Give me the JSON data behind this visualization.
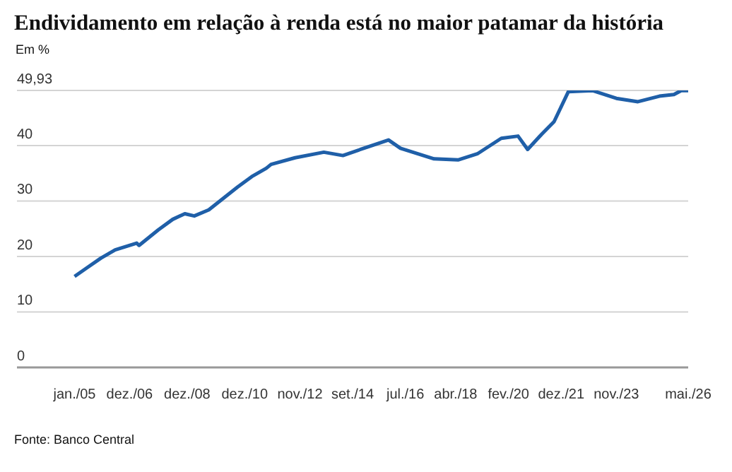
{
  "chart_data": {
    "type": "line",
    "title": "Endividamento em relação à renda está no maior patamar da história",
    "ylabel": "Em %",
    "annotations": [
      "Fonte: Banco Central"
    ],
    "x": [
      "2005-01",
      "2005-06",
      "2005-12",
      "2006-06",
      "2007-03",
      "2007-04",
      "2007-12",
      "2008-06",
      "2008-11",
      "2009-03",
      "2009-09",
      "2010-04",
      "2010-09",
      "2011-03",
      "2011-09",
      "2011-11",
      "2012-09",
      "2013-09",
      "2014-05",
      "2015-03",
      "2015-12",
      "2016-05",
      "2017-07",
      "2018-05",
      "2019-01",
      "2019-11",
      "2020-06",
      "2020-10",
      "2021-04",
      "2021-09",
      "2022-03",
      "2023-01",
      "2023-11",
      "2024-08",
      "2025-05",
      "2025-11",
      "2026-02",
      "2026-05"
    ],
    "series": [
      {
        "color": "#1f5fa8",
        "values": [
          16.4,
          17.9,
          19.7,
          21.2,
          22.4,
          22.0,
          24.8,
          26.7,
          27.7,
          27.3,
          28.4,
          30.8,
          32.5,
          34.4,
          35.9,
          36.6,
          37.8,
          38.8,
          38.2,
          39.7,
          41.0,
          39.5,
          37.6,
          37.4,
          38.5,
          41.3,
          41.7,
          39.3,
          42.1,
          44.3,
          49.7,
          49.9,
          48.5,
          47.9,
          48.9,
          49.2,
          49.9,
          49.9
        ]
      }
    ],
    "xlim": [
      "2003-01",
      "2026-05"
    ],
    "xticks": [
      {
        "value": "2005-01",
        "label": "jan./05"
      },
      {
        "value": "2006-12",
        "label": "dez./06"
      },
      {
        "value": "2008-12",
        "label": "dez./08"
      },
      {
        "value": "2010-12",
        "label": "dez./10"
      },
      {
        "value": "2012-11",
        "label": "nov./12"
      },
      {
        "value": "2014-09",
        "label": "set./14"
      },
      {
        "value": "2016-07",
        "label": "jul./16"
      },
      {
        "value": "2018-04",
        "label": "abr./18"
      },
      {
        "value": "2020-02",
        "label": "fev./20"
      },
      {
        "value": "2021-12",
        "label": "dez./21"
      },
      {
        "value": "2023-11",
        "label": "nov./23"
      },
      {
        "value": "2026-05",
        "label": "mai./26"
      }
    ],
    "ylim": [
      0,
      49.93
    ],
    "yticks": [
      0,
      10,
      20,
      30,
      40,
      {
        "value": 49.93,
        "label": "49,93"
      }
    ],
    "grid": "y"
  }
}
